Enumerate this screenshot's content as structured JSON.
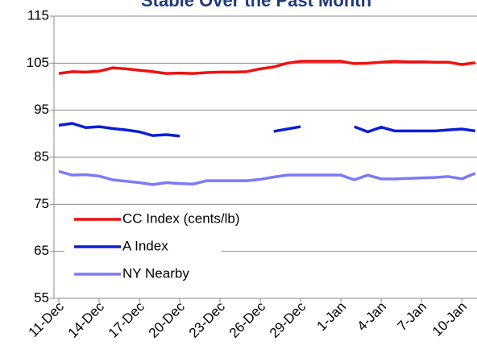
{
  "chart_data": {
    "type": "line",
    "title": "Stable Over the Past Month",
    "categories": [
      "11-Dec",
      null,
      null,
      "14-Dec",
      null,
      null,
      "17-Dec",
      null,
      null,
      "20-Dec",
      null,
      null,
      "23-Dec",
      null,
      null,
      "26-Dec",
      null,
      null,
      "29-Dec",
      null,
      null,
      "1-Jan",
      null,
      null,
      "4-Jan",
      null,
      null,
      "7-Jan",
      null,
      null,
      "10-Jan",
      null
    ],
    "series": [
      {
        "name": "CC Index (cents/lb)",
        "color": "#ee1111",
        "values": [
          102.8,
          103.2,
          103.1,
          103.3,
          104.0,
          103.8,
          103.5,
          103.2,
          102.8,
          102.9,
          102.8,
          103.0,
          103.1,
          103.1,
          103.2,
          103.8,
          104.2,
          105.0,
          105.4,
          105.4,
          105.4,
          105.4,
          104.9,
          105.0,
          105.2,
          105.4,
          105.3,
          105.3,
          105.2,
          105.2,
          104.7,
          105.1
        ]
      },
      {
        "name": "A Index",
        "color": "#0a1fd6",
        "values": [
          91.8,
          92.2,
          91.3,
          91.5,
          91.1,
          90.8,
          90.4,
          89.6,
          89.8,
          89.5,
          null,
          null,
          null,
          null,
          null,
          null,
          90.5,
          91.0,
          91.5,
          null,
          null,
          null,
          91.5,
          90.4,
          91.4,
          90.6,
          90.6,
          90.6,
          90.6,
          90.8,
          91.0,
          90.6
        ]
      },
      {
        "name": "NY Nearby",
        "color": "#7b7bf5",
        "values": [
          82.0,
          81.2,
          81.3,
          81.0,
          80.2,
          79.9,
          79.6,
          79.2,
          79.6,
          79.4,
          79.3,
          80.0,
          80.0,
          80.0,
          80.0,
          80.3,
          80.8,
          81.2,
          81.2,
          81.2,
          81.2,
          81.2,
          80.2,
          81.2,
          80.4,
          80.4,
          80.5,
          80.6,
          80.7,
          80.9,
          80.4,
          81.6
        ]
      }
    ],
    "ylim": [
      55,
      115
    ],
    "yticks": [
      55,
      65,
      75,
      85,
      95,
      105,
      115
    ],
    "grid": true,
    "legend": "lower-left"
  }
}
